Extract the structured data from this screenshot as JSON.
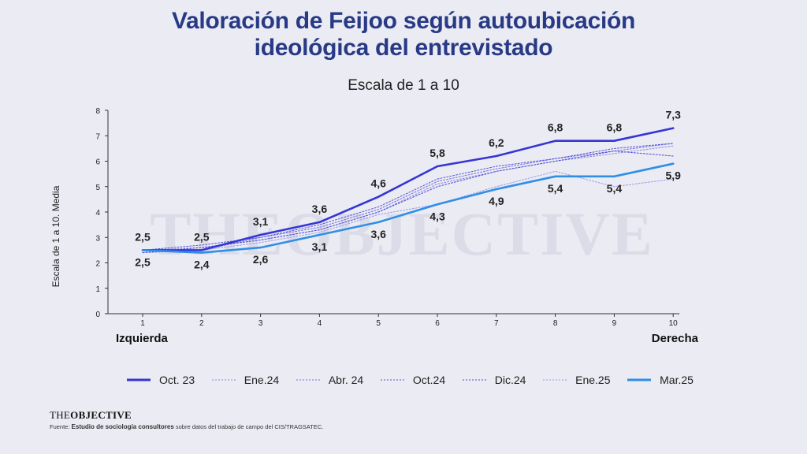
{
  "title_line1": "Valoración de Feijoo según autoubicación",
  "title_line2": "ideológica del entrevistado",
  "chart_data": {
    "type": "line",
    "title": "Valoración de Feijoo según autoubicación ideológica del entrevistado",
    "subtitle": "Escala de 1 a 10",
    "ylabel": "Escala de 1 a 10. Media",
    "x_left_label": "Izquierda",
    "x_right_label": "Derecha",
    "x": [
      1,
      2,
      3,
      4,
      5,
      6,
      7,
      8,
      9,
      10
    ],
    "x_tick_labels": [
      "1",
      "2",
      "3",
      "4",
      "5",
      "6",
      "7",
      "8",
      "9",
      "10"
    ],
    "ylim": [
      0,
      8
    ],
    "y_ticks": [
      0,
      1,
      2,
      3,
      4,
      5,
      6,
      7,
      8
    ],
    "y_tick_labels": [
      "0",
      "1",
      "2",
      "3",
      "4",
      "5",
      "6",
      "7",
      "8"
    ],
    "grid": false,
    "legend_position": "bottom",
    "series": [
      {
        "name": "Oct. 23",
        "style": "solid",
        "color": "#3535d6",
        "values": [
          2.5,
          2.5,
          3.1,
          3.6,
          4.6,
          5.8,
          6.2,
          6.8,
          6.8,
          7.3
        ],
        "labels": [
          "2,5",
          "2,5",
          "3,1",
          "3,6",
          "4,6",
          "5,8",
          "6,2",
          "6,8",
          "6,8",
          "7,3"
        ]
      },
      {
        "name": "Ene.24",
        "style": "dotted",
        "color": "#8a8ae6",
        "values": [
          2.5,
          2.6,
          2.9,
          3.3,
          4.0,
          5.1,
          5.6,
          6.0,
          6.3,
          6.6
        ]
      },
      {
        "name": "Abr. 24",
        "style": "dotted",
        "color": "#7070e0",
        "values": [
          2.4,
          2.5,
          3.0,
          3.4,
          4.1,
          5.2,
          5.7,
          6.1,
          6.4,
          6.7
        ]
      },
      {
        "name": "Oct.24",
        "style": "dotted",
        "color": "#5656dc",
        "values": [
          2.5,
          2.7,
          3.0,
          3.5,
          4.2,
          5.3,
          5.8,
          6.1,
          6.5,
          6.7
        ]
      },
      {
        "name": "Dic.24",
        "style": "dotted",
        "color": "#4b4bd8",
        "values": [
          2.4,
          2.6,
          2.9,
          3.3,
          4.0,
          5.0,
          5.6,
          6.0,
          6.4,
          6.2
        ]
      },
      {
        "name": "Ene.25",
        "style": "dotted",
        "color": "#9a9aea",
        "values": [
          2.5,
          2.5,
          2.8,
          3.2,
          3.9,
          4.3,
          5.0,
          5.6,
          5.0,
          5.3
        ]
      },
      {
        "name": "Mar.25",
        "style": "solid",
        "color": "#2f8fe6",
        "values": [
          2.5,
          2.4,
          2.6,
          3.1,
          3.6,
          4.3,
          4.9,
          5.4,
          5.4,
          5.9
        ],
        "labels": [
          "2,5",
          "2,4",
          "2,6",
          "3,1",
          "3,6",
          "4,3",
          "4,9",
          "5,4",
          "5,4",
          "5,9"
        ]
      }
    ]
  },
  "watermark": "THEOBJECTIVE",
  "brand_the": "THE",
  "brand_objective": "OBJECTIVE",
  "source_prefix": "Fuente: ",
  "source_bold": "Estudio de sociología consultores",
  "source_rest": " sobre datos del trabajo de campo del CIS/TRAGSATEC."
}
